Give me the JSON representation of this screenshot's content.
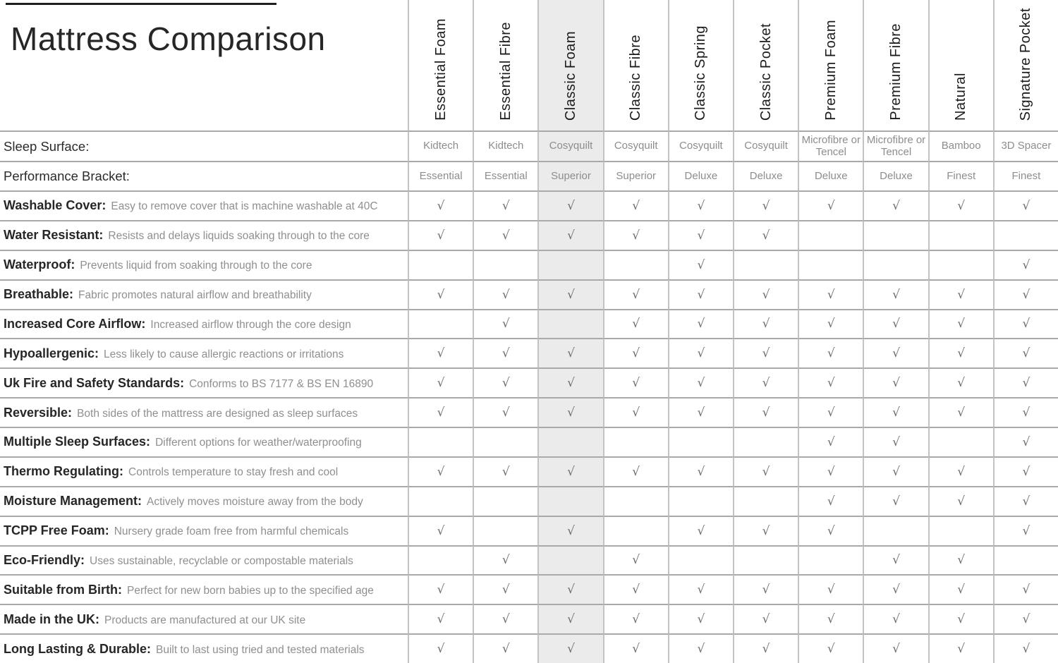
{
  "title": "Mattress Comparison",
  "check_glyph": "√",
  "colors": {
    "highlight_column_bg": "#ebebeb",
    "gridline_horizontal": "#a9a9a9",
    "gridline_vertical": "#c3c3c3",
    "title_rule": "#1f1f1f",
    "text_dark": "#262626",
    "text_muted": "#8d8d8d",
    "checkmark": "#6e6e6e"
  },
  "meta_rows": [
    {
      "label": "Sleep Surface:"
    },
    {
      "label": "Performance Bracket:"
    }
  ],
  "columns": [
    {
      "id": "essential-foam",
      "name": "Essential Foam",
      "sleep_surface": "Kidtech",
      "bracket": "Essential",
      "highlighted": false
    },
    {
      "id": "essential-fibre",
      "name": "Essential Fibre",
      "sleep_surface": "Kidtech",
      "bracket": "Essential",
      "highlighted": false
    },
    {
      "id": "classic-foam",
      "name": "Classic Foam",
      "sleep_surface": "Cosyquilt",
      "bracket": "Superior",
      "highlighted": true
    },
    {
      "id": "classic-fibre",
      "name": "Classic Fibre",
      "sleep_surface": "Cosyquilt",
      "bracket": "Superior",
      "highlighted": false
    },
    {
      "id": "classic-spring",
      "name": "Classic Spring",
      "sleep_surface": "Cosyquilt",
      "bracket": "Deluxe",
      "highlighted": false
    },
    {
      "id": "classic-pocket",
      "name": "Classic Pocket",
      "sleep_surface": "Cosyquilt",
      "bracket": "Deluxe",
      "highlighted": false
    },
    {
      "id": "premium-foam",
      "name": "Premium Foam",
      "sleep_surface": "Microfibre or Tencel",
      "bracket": "Deluxe",
      "highlighted": false
    },
    {
      "id": "premium-fibre",
      "name": "Premium Fibre",
      "sleep_surface": "Microfibre or Tencel",
      "bracket": "Deluxe",
      "highlighted": false
    },
    {
      "id": "natural",
      "name": "Natural",
      "sleep_surface": "Bamboo",
      "bracket": "Finest",
      "highlighted": false
    },
    {
      "id": "signature-pocket",
      "name": "Signature Pocket",
      "sleep_surface": "3D Spacer",
      "bracket": "Finest",
      "highlighted": false
    }
  ],
  "feature_rows": [
    {
      "label": "Washable Cover:",
      "description": "Easy to remove cover that is machine washable at 40C",
      "values": [
        1,
        1,
        1,
        1,
        1,
        1,
        1,
        1,
        1,
        1
      ]
    },
    {
      "label": "Water Resistant:",
      "description": "Resists and delays liquids soaking through to the core",
      "values": [
        1,
        1,
        1,
        1,
        1,
        1,
        0,
        0,
        0,
        0
      ]
    },
    {
      "label": "Waterproof:",
      "description": "Prevents liquid from soaking through to the core",
      "values": [
        0,
        0,
        0,
        0,
        1,
        0,
        0,
        0,
        0,
        1
      ]
    },
    {
      "label": "Breathable:",
      "description": "Fabric promotes natural airflow and breathability",
      "values": [
        1,
        1,
        1,
        1,
        1,
        1,
        1,
        1,
        1,
        1
      ]
    },
    {
      "label": "Increased Core Airflow:",
      "description": "Increased airflow through the core design",
      "values": [
        0,
        1,
        0,
        1,
        1,
        1,
        1,
        1,
        1,
        1
      ]
    },
    {
      "label": "Hypoallergenic:",
      "description": "Less likely to cause allergic reactions or irritations",
      "values": [
        1,
        1,
        1,
        1,
        1,
        1,
        1,
        1,
        1,
        1
      ]
    },
    {
      "label": "Uk Fire and Safety Standards:",
      "description": "Conforms to BS 7177 & BS EN 16890",
      "values": [
        1,
        1,
        1,
        1,
        1,
        1,
        1,
        1,
        1,
        1
      ]
    },
    {
      "label": "Reversible:",
      "description": "Both sides of the mattress are designed as sleep surfaces",
      "values": [
        1,
        1,
        1,
        1,
        1,
        1,
        1,
        1,
        1,
        1
      ]
    },
    {
      "label": "Multiple Sleep Surfaces:",
      "description": "Different options for weather/waterproofing",
      "values": [
        0,
        0,
        0,
        0,
        0,
        0,
        1,
        1,
        0,
        1
      ]
    },
    {
      "label": "Thermo Regulating:",
      "description": "Controls temperature to stay fresh and cool",
      "values": [
        1,
        1,
        1,
        1,
        1,
        1,
        1,
        1,
        1,
        1
      ]
    },
    {
      "label": "Moisture Management:",
      "description": "Actively moves moisture away from the body",
      "values": [
        0,
        0,
        0,
        0,
        0,
        0,
        1,
        1,
        1,
        1
      ]
    },
    {
      "label": "TCPP Free Foam:",
      "description": "Nursery grade foam free from harmful chemicals",
      "values": [
        1,
        0,
        1,
        0,
        1,
        1,
        1,
        0,
        0,
        1
      ]
    },
    {
      "label": "Eco-Friendly:",
      "description": "Uses sustainable, recyclable or compostable materials",
      "values": [
        0,
        1,
        0,
        1,
        0,
        0,
        0,
        1,
        1,
        0
      ]
    },
    {
      "label": "Suitable from Birth:",
      "description": "Perfect for new born babies up to the specified age",
      "values": [
        1,
        1,
        1,
        1,
        1,
        1,
        1,
        1,
        1,
        1
      ]
    },
    {
      "label": "Made in the UK:",
      "description": "Products are manufactured at our UK site",
      "values": [
        1,
        1,
        1,
        1,
        1,
        1,
        1,
        1,
        1,
        1
      ]
    },
    {
      "label": "Long Lasting & Durable:",
      "description": "Built to last using tried and tested materials",
      "values": [
        1,
        1,
        1,
        1,
        1,
        1,
        1,
        1,
        1,
        1
      ]
    }
  ]
}
